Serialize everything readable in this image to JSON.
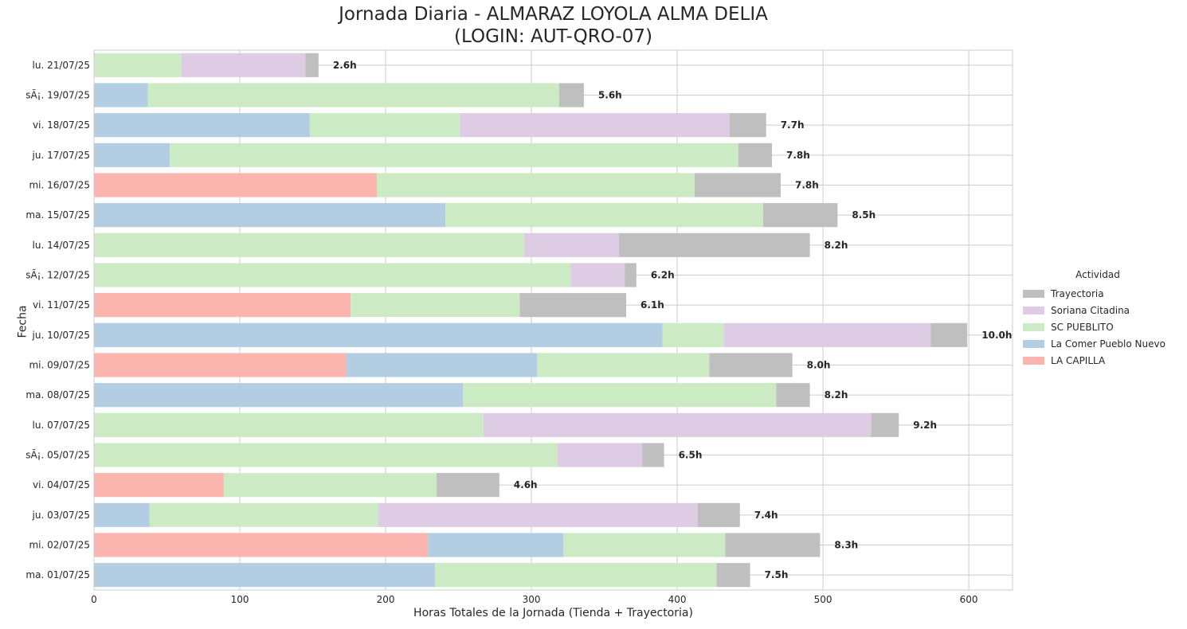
{
  "chart_data": {
    "type": "bar",
    "orientation": "horizontal",
    "stacked": true,
    "title": "Jornada Diaria - ALMARAZ LOYOLA ALMA DELIA",
    "subtitle": "(LOGIN: AUT-QRO-07)",
    "xlabel": "Horas Totales de la Jornada (Tienda + Trayectoria)",
    "ylabel": "Fecha",
    "xlim": [
      0,
      630
    ],
    "xticks": [
      0,
      100,
      200,
      300,
      400,
      500,
      600
    ],
    "grid": true,
    "legend_title": "Actividad",
    "legend_placement": "right",
    "categories": [
      "lu. 21/07/25",
      "sÃ¡. 19/07/25",
      "vi. 18/07/25",
      "ju. 17/07/25",
      "mi. 16/07/25",
      "ma. 15/07/25",
      "lu. 14/07/25",
      "sÃ¡. 12/07/25",
      "vi. 11/07/25",
      "ju. 10/07/25",
      "mi. 09/07/25",
      "ma. 08/07/25",
      "lu. 07/07/25",
      "sÃ¡. 05/07/25",
      "vi. 04/07/25",
      "ju. 03/07/25",
      "mi. 02/07/25",
      "ma. 01/07/25"
    ],
    "series": [
      {
        "name": "LA CAPILLA",
        "color": "#fbb4ae",
        "values": [
          0,
          0,
          0,
          0,
          194,
          0,
          0,
          0,
          176,
          0,
          173,
          0,
          0,
          0,
          89,
          0,
          229,
          0
        ]
      },
      {
        "name": "La Comer Pueblo Nuevo",
        "color": "#b3cde3",
        "values": [
          0,
          37,
          148,
          52,
          0,
          241,
          0,
          0,
          0,
          390,
          131,
          253,
          0,
          0,
          0,
          38,
          93,
          234
        ]
      },
      {
        "name": "SC PUEBLITO",
        "color": "#ccebc5",
        "values": [
          60,
          282,
          103,
          390,
          218,
          218,
          295,
          327,
          116,
          42,
          118,
          215,
          267,
          318,
          146,
          157,
          111,
          193
        ]
      },
      {
        "name": "Soriana Citadina",
        "color": "#decbe4",
        "values": [
          85,
          0,
          185,
          0,
          0,
          0,
          65,
          37,
          0,
          142,
          0,
          0,
          266,
          58,
          0,
          219,
          0,
          0
        ]
      },
      {
        "name": "Trayectoria",
        "color": "#bfbfbf",
        "values": [
          9,
          17,
          25,
          23,
          59,
          51,
          131,
          8,
          73,
          25,
          57,
          23,
          19,
          15,
          43,
          29,
          65,
          23
        ]
      }
    ],
    "bar_labels": [
      "2.6h",
      "5.6h",
      "7.7h",
      "7.8h",
      "7.8h",
      "8.5h",
      "8.2h",
      "6.2h",
      "6.1h",
      "10.0h",
      "8.0h",
      "8.2h",
      "9.2h",
      "6.5h",
      "4.6h",
      "7.4h",
      "8.3h",
      "7.5h"
    ],
    "legend_order": [
      "Trayectoria",
      "Soriana Citadina",
      "SC PUEBLITO",
      "La Comer Pueblo Nuevo",
      "LA CAPILLA"
    ]
  }
}
